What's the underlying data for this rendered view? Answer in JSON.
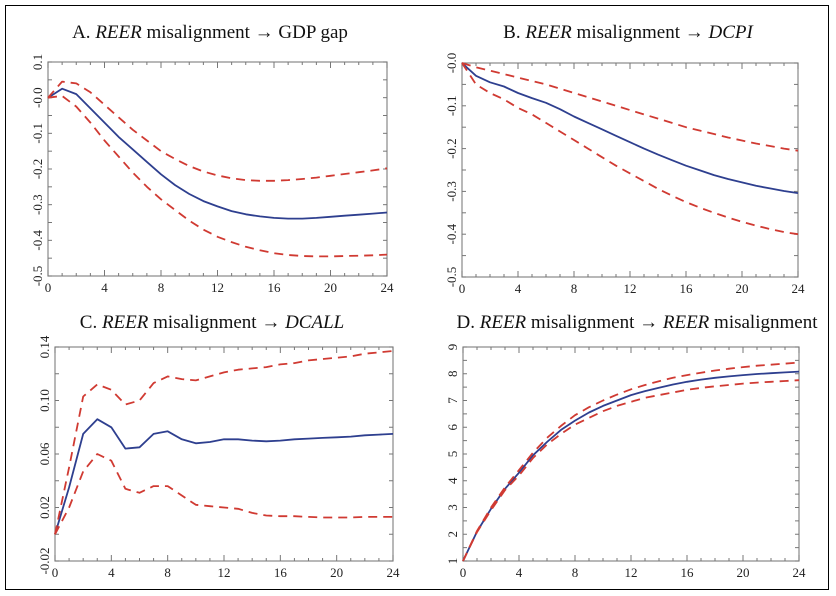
{
  "chart_data": [
    {
      "type": "line",
      "title_parts": [
        {
          "text": "A. ",
          "italic": false
        },
        {
          "text": "REER",
          "italic": true
        },
        {
          "text": " misalignment  →  GDP gap",
          "italic": false
        }
      ],
      "xlim": [
        0,
        24
      ],
      "ylim": [
        -0.5,
        0.1
      ],
      "xticks": [
        0,
        4,
        8,
        12,
        16,
        20,
        24
      ],
      "yticks": [
        {
          "v": 0.1,
          "label": "0.1"
        },
        {
          "v": 0,
          "label": "-0.0"
        },
        {
          "v": -0.1,
          "label": "-0.1"
        },
        {
          "v": -0.2,
          "label": "-0.2"
        },
        {
          "v": -0.3,
          "label": "-0.3"
        },
        {
          "v": -0.4,
          "label": "-0.4"
        },
        {
          "v": -0.5,
          "label": "-0.5"
        }
      ],
      "yminor": 0.05,
      "x": [
        0,
        1,
        2,
        3,
        4,
        5,
        6,
        7,
        8,
        9,
        10,
        11,
        12,
        13,
        14,
        15,
        16,
        17,
        18,
        19,
        20,
        21,
        22,
        23,
        24
      ],
      "series": [
        {
          "role": "response",
          "style": "solid",
          "values": [
            0,
            0.025,
            0.01,
            -0.03,
            -0.07,
            -0.11,
            -0.145,
            -0.18,
            -0.215,
            -0.245,
            -0.27,
            -0.29,
            -0.305,
            -0.318,
            -0.327,
            -0.333,
            -0.337,
            -0.339,
            -0.339,
            -0.337,
            -0.334,
            -0.331,
            -0.328,
            -0.325,
            -0.322
          ]
        },
        {
          "role": "upper band",
          "style": "dashed",
          "values": [
            0,
            0.045,
            0.04,
            0.015,
            -0.02,
            -0.055,
            -0.09,
            -0.12,
            -0.15,
            -0.172,
            -0.192,
            -0.207,
            -0.218,
            -0.226,
            -0.231,
            -0.233,
            -0.233,
            -0.231,
            -0.228,
            -0.224,
            -0.219,
            -0.214,
            -0.209,
            -0.204,
            -0.198
          ]
        },
        {
          "role": "lower band",
          "style": "dashed",
          "values": [
            0,
            0.005,
            -0.025,
            -0.07,
            -0.12,
            -0.165,
            -0.21,
            -0.25,
            -0.285,
            -0.315,
            -0.345,
            -0.37,
            -0.39,
            -0.405,
            -0.418,
            -0.428,
            -0.436,
            -0.441,
            -0.444,
            -0.445,
            -0.445,
            -0.444,
            -0.443,
            -0.442,
            -0.44
          ]
        }
      ]
    },
    {
      "type": "line",
      "title_parts": [
        {
          "text": "B. ",
          "italic": false
        },
        {
          "text": "REER",
          "italic": true
        },
        {
          "text": " misalignment  →  ",
          "italic": false
        },
        {
          "text": "DCPI",
          "italic": true
        }
      ],
      "xlim": [
        0,
        24
      ],
      "ylim": [
        -0.5,
        0
      ],
      "xticks": [
        0,
        4,
        8,
        12,
        16,
        20,
        24
      ],
      "yticks": [
        {
          "v": 0,
          "label": "-0.0"
        },
        {
          "v": -0.1,
          "label": "-0.1"
        },
        {
          "v": -0.2,
          "label": "-0.2"
        },
        {
          "v": -0.3,
          "label": "-0.3"
        },
        {
          "v": -0.4,
          "label": "-0.4"
        },
        {
          "v": -0.5,
          "label": "-0.5"
        }
      ],
      "yminor": 0.05,
      "x": [
        0,
        1,
        2,
        3,
        4,
        5,
        6,
        7,
        8,
        9,
        10,
        11,
        12,
        13,
        14,
        15,
        16,
        17,
        18,
        19,
        20,
        21,
        22,
        23,
        24
      ],
      "series": [
        {
          "role": "response",
          "style": "solid",
          "values": [
            0,
            -0.03,
            -0.045,
            -0.055,
            -0.07,
            -0.082,
            -0.093,
            -0.108,
            -0.125,
            -0.14,
            -0.155,
            -0.17,
            -0.185,
            -0.2,
            -0.214,
            -0.227,
            -0.24,
            -0.251,
            -0.262,
            -0.271,
            -0.279,
            -0.287,
            -0.293,
            -0.299,
            -0.304
          ]
        },
        {
          "role": "upper band",
          "style": "dashed",
          "values": [
            0,
            -0.01,
            -0.018,
            -0.026,
            -0.034,
            -0.042,
            -0.05,
            -0.06,
            -0.07,
            -0.08,
            -0.09,
            -0.1,
            -0.11,
            -0.12,
            -0.13,
            -0.14,
            -0.15,
            -0.158,
            -0.166,
            -0.174,
            -0.181,
            -0.188,
            -0.194,
            -0.2,
            -0.205
          ]
        },
        {
          "role": "lower band",
          "style": "dashed",
          "values": [
            0,
            -0.05,
            -0.07,
            -0.085,
            -0.105,
            -0.12,
            -0.14,
            -0.16,
            -0.18,
            -0.2,
            -0.22,
            -0.24,
            -0.258,
            -0.276,
            -0.294,
            -0.31,
            -0.325,
            -0.338,
            -0.35,
            -0.361,
            -0.371,
            -0.38,
            -0.388,
            -0.395,
            -0.4
          ]
        }
      ]
    },
    {
      "type": "line",
      "title_parts": [
        {
          "text": "C. ",
          "italic": false
        },
        {
          "text": "REER",
          "italic": true
        },
        {
          "text": " misalignment → ",
          "italic": false
        },
        {
          "text": "DCALL",
          "italic": true
        }
      ],
      "xlim": [
        0,
        24
      ],
      "ylim": [
        -0.02,
        0.14
      ],
      "xticks": [
        0,
        4,
        8,
        12,
        16,
        20,
        24
      ],
      "yticks": [
        {
          "v": -0.02,
          "label": "-0.02"
        },
        {
          "v": 0.02,
          "label": "0.02"
        },
        {
          "v": 0.06,
          "label": "0.06"
        },
        {
          "v": 0.1,
          "label": "0.10"
        },
        {
          "v": 0.14,
          "label": "0.14"
        }
      ],
      "yminor": 0.02,
      "x": [
        0,
        1,
        2,
        3,
        4,
        5,
        6,
        7,
        8,
        9,
        10,
        11,
        12,
        13,
        14,
        15,
        16,
        17,
        18,
        19,
        20,
        21,
        22,
        23,
        24
      ],
      "series": [
        {
          "role": "response",
          "style": "solid",
          "values": [
            0,
            0.035,
            0.075,
            0.086,
            0.08,
            0.064,
            0.065,
            0.075,
            0.077,
            0.071,
            0.068,
            0.069,
            0.071,
            0.071,
            0.07,
            0.0695,
            0.07,
            0.071,
            0.0715,
            0.072,
            0.0725,
            0.073,
            0.074,
            0.0745,
            0.075
          ]
        },
        {
          "role": "upper band",
          "style": "dashed",
          "values": [
            0,
            0.05,
            0.103,
            0.112,
            0.108,
            0.097,
            0.1,
            0.113,
            0.118,
            0.116,
            0.115,
            0.118,
            0.121,
            0.123,
            0.124,
            0.125,
            0.127,
            0.128,
            0.13,
            0.131,
            0.132,
            0.133,
            0.135,
            0.136,
            0.137
          ]
        },
        {
          "role": "lower band",
          "style": "dashed",
          "values": [
            0,
            0.02,
            0.047,
            0.06,
            0.055,
            0.034,
            0.031,
            0.036,
            0.036,
            0.029,
            0.022,
            0.021,
            0.02,
            0.019,
            0.016,
            0.014,
            0.0135,
            0.0135,
            0.013,
            0.0125,
            0.0125,
            0.0125,
            0.013,
            0.013,
            0.013
          ]
        }
      ]
    },
    {
      "type": "line",
      "title_parts": [
        {
          "text": "D. ",
          "italic": false
        },
        {
          "text": "REER",
          "italic": true
        },
        {
          "text": " misalignment → ",
          "italic": false
        },
        {
          "text": "REER",
          "italic": true
        },
        {
          "text": " misalignment",
          "italic": false
        }
      ],
      "xlim": [
        0,
        24
      ],
      "ylim": [
        1,
        9
      ],
      "xticks": [
        0,
        4,
        8,
        12,
        16,
        20,
        24
      ],
      "yticks": [
        {
          "v": 1,
          "label": "1"
        },
        {
          "v": 2,
          "label": "2"
        },
        {
          "v": 3,
          "label": "3"
        },
        {
          "v": 4,
          "label": "4"
        },
        {
          "v": 5,
          "label": "5"
        },
        {
          "v": 6,
          "label": "6"
        },
        {
          "v": 7,
          "label": "7"
        },
        {
          "v": 8,
          "label": "8"
        },
        {
          "v": 9,
          "label": "9"
        }
      ],
      "yminor": 0.5,
      "x": [
        0,
        1,
        2,
        3,
        4,
        5,
        6,
        7,
        8,
        9,
        10,
        11,
        12,
        13,
        14,
        15,
        16,
        17,
        18,
        19,
        20,
        21,
        22,
        23,
        24
      ],
      "series": [
        {
          "role": "response",
          "style": "solid",
          "values": [
            1,
            2.1,
            2.95,
            3.7,
            4.3,
            4.95,
            5.45,
            5.9,
            6.25,
            6.55,
            6.8,
            7.0,
            7.2,
            7.35,
            7.48,
            7.6,
            7.7,
            7.78,
            7.85,
            7.9,
            7.95,
            7.99,
            8.02,
            8.05,
            8.08
          ]
        },
        {
          "role": "upper band",
          "style": "dashed",
          "values": [
            1,
            2.12,
            3.0,
            3.75,
            4.4,
            5.05,
            5.6,
            6.05,
            6.45,
            6.75,
            7.0,
            7.22,
            7.42,
            7.58,
            7.72,
            7.85,
            7.95,
            8.04,
            8.12,
            8.19,
            8.25,
            8.3,
            8.34,
            8.38,
            8.42
          ]
        },
        {
          "role": "lower band",
          "style": "dashed",
          "values": [
            1,
            2.08,
            2.9,
            3.65,
            4.2,
            4.85,
            5.35,
            5.75,
            6.1,
            6.35,
            6.6,
            6.8,
            6.95,
            7.1,
            7.2,
            7.3,
            7.4,
            7.47,
            7.53,
            7.58,
            7.63,
            7.67,
            7.7,
            7.73,
            7.76
          ]
        }
      ]
    }
  ],
  "colors": {
    "response": "#2e3f8f",
    "band": "#d03a32",
    "axes": "#888888"
  }
}
